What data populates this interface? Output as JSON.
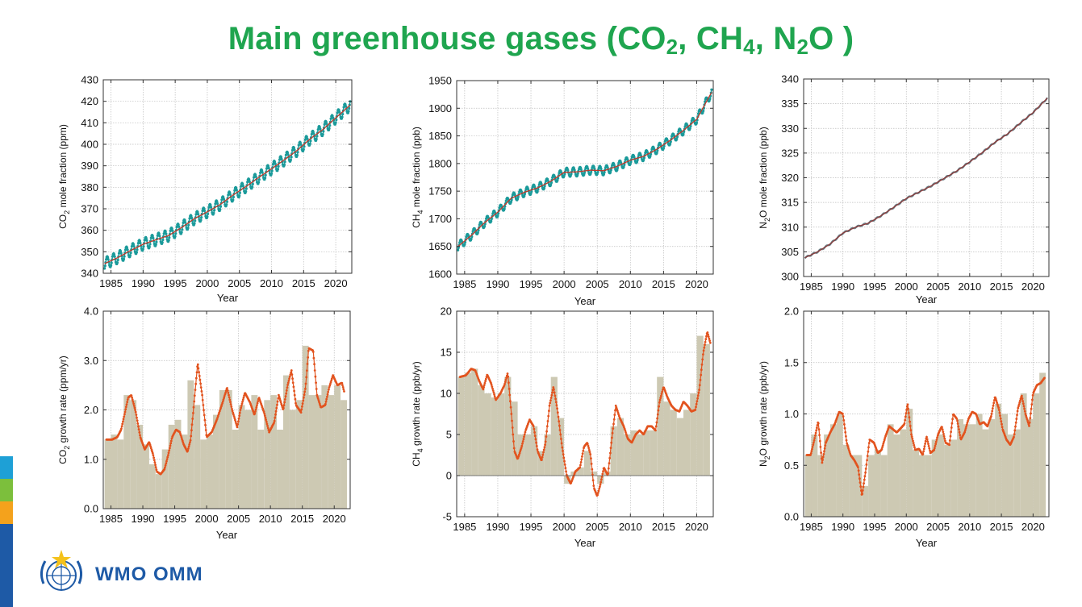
{
  "page": {
    "title_parts": [
      "Main greenhouse gases (CO",
      "2",
      ", CH",
      "4",
      ", N",
      "2",
      "O )"
    ]
  },
  "logo": {
    "text": "WMO OMM",
    "icon": "wmo-emblem-icon"
  },
  "colors": {
    "title": "#1fa54f",
    "monthly": "#1a9a9a",
    "trend": "#c0392b",
    "growth_line": "#e2531e",
    "annual_bar": "#cdc9b3",
    "n2o_line": "#8c3a3a",
    "side_stripes": [
      "#1ea0d6",
      "#7cbf3c",
      "#f4a21c",
      "#1e5aa6"
    ]
  },
  "chart_data": [
    {
      "id": "co2-concentration",
      "type": "line",
      "xlabel": "Year",
      "ylabel_parts": [
        "CO",
        "2",
        " mole fraction (ppm)"
      ],
      "xlim": [
        1983.8,
        2022.5
      ],
      "ylim": [
        340,
        430
      ],
      "xticks": [
        1985,
        1990,
        1995,
        2000,
        2005,
        2010,
        2015,
        2020
      ],
      "yticks": [
        340,
        350,
        360,
        370,
        380,
        390,
        400,
        410,
        420,
        430
      ],
      "grid": true,
      "seasonal_amplitude": 2.8,
      "series": [
        {
          "role": "monthly",
          "x": [
            1984,
            1986,
            1988,
            1990,
            1992,
            1994,
            1996,
            1998,
            2000,
            2002,
            2004,
            2006,
            2008,
            2010,
            2012,
            2014,
            2016,
            2018,
            2020,
            2022.3
          ],
          "values": [
            344.5,
            347.2,
            350.5,
            353.5,
            355.6,
            357.6,
            361.3,
            365.4,
            368.6,
            372.0,
            376.4,
            380.3,
            384.6,
            388.6,
            392.8,
            397.2,
            402.5,
            406.9,
            412.3,
            418.4
          ]
        },
        {
          "role": "trend",
          "x": [
            1984,
            1986,
            1988,
            1990,
            1992,
            1994,
            1996,
            1998,
            2000,
            2002,
            2004,
            2006,
            2008,
            2010,
            2012,
            2014,
            2016,
            2018,
            2020,
            2022.3
          ],
          "values": [
            344.5,
            347.2,
            350.5,
            353.5,
            355.6,
            357.6,
            361.3,
            365.4,
            368.6,
            372.0,
            376.4,
            380.3,
            384.6,
            388.6,
            392.8,
            397.2,
            402.5,
            406.9,
            412.3,
            418.4
          ]
        }
      ]
    },
    {
      "id": "ch4-concentration",
      "type": "line",
      "xlabel": "Year",
      "ylabel_parts": [
        "CH",
        "4",
        " mole fraction (ppb)"
      ],
      "xlim": [
        1983.8,
        2022.5
      ],
      "ylim": [
        1600,
        1950
      ],
      "xticks": [
        1985,
        1990,
        1995,
        2000,
        2005,
        2010,
        2015,
        2020
      ],
      "yticks": [
        1600,
        1650,
        1700,
        1750,
        1800,
        1850,
        1900,
        1950
      ],
      "grid": true,
      "seasonal_amplitude": 8,
      "series": [
        {
          "role": "monthly",
          "x": [
            1984,
            1986,
            1988,
            1990,
            1992,
            1994,
            1996,
            1998,
            2000,
            2002,
            2004,
            2006,
            2008,
            2010,
            2012,
            2014,
            2016,
            2018,
            2020,
            2022.3
          ],
          "values": [
            1650,
            1670,
            1693,
            1712,
            1737,
            1748,
            1756,
            1768,
            1784,
            1785,
            1788,
            1787,
            1795,
            1806,
            1813,
            1826,
            1842,
            1860,
            1880,
            1930
          ]
        },
        {
          "role": "trend",
          "x": [
            1984,
            1986,
            1988,
            1990,
            1992,
            1994,
            1996,
            1998,
            2000,
            2002,
            2004,
            2006,
            2008,
            2010,
            2012,
            2014,
            2016,
            2018,
            2020,
            2022.3
          ],
          "values": [
            1650,
            1670,
            1693,
            1712,
            1737,
            1748,
            1756,
            1768,
            1784,
            1785,
            1788,
            1787,
            1795,
            1806,
            1813,
            1826,
            1842,
            1860,
            1880,
            1930
          ]
        }
      ]
    },
    {
      "id": "n2o-concentration",
      "type": "line",
      "xlabel": "Year",
      "ylabel_parts": [
        "N",
        "2",
        "O mole fraction (ppb)"
      ],
      "xlim": [
        1983.8,
        2022.5
      ],
      "ylim": [
        300,
        340
      ],
      "xticks": [
        1985,
        1990,
        1995,
        2000,
        2005,
        2010,
        2015,
        2020
      ],
      "yticks": [
        300,
        305,
        310,
        315,
        320,
        325,
        330,
        335,
        340
      ],
      "grid": true,
      "seasonal_amplitude": 0.15,
      "series": [
        {
          "role": "monthly",
          "x": [
            1984,
            1986,
            1988,
            1990,
            1992,
            1994,
            1996,
            1998,
            2000,
            2002,
            2004,
            2006,
            2008,
            2010,
            2012,
            2014,
            2016,
            2018,
            2020,
            2022.3
          ],
          "values": [
            303.8,
            305.0,
            306.6,
            308.8,
            310.0,
            310.8,
            312.3,
            314.0,
            315.8,
            317.1,
            318.4,
            319.9,
            321.4,
            323.2,
            325.1,
            327.2,
            328.9,
            331.1,
            333.2,
            336.2
          ]
        },
        {
          "role": "trend",
          "x": [
            1984,
            1986,
            1988,
            1990,
            1992,
            1994,
            1996,
            1998,
            2000,
            2002,
            2004,
            2006,
            2008,
            2010,
            2012,
            2014,
            2016,
            2018,
            2020,
            2022.3
          ],
          "values": [
            303.8,
            305.0,
            306.6,
            308.8,
            310.0,
            310.8,
            312.3,
            314.0,
            315.8,
            317.1,
            318.4,
            319.9,
            321.4,
            323.2,
            325.1,
            327.2,
            328.9,
            331.1,
            333.2,
            336.2
          ]
        }
      ]
    },
    {
      "id": "co2-growth-rate",
      "type": "bar",
      "xlabel": "Year",
      "ylabel_parts": [
        "CO",
        "2",
        " growth rate (ppm/yr)"
      ],
      "xlim": [
        1983.8,
        2022.5
      ],
      "ylim": [
        0,
        4
      ],
      "xticks": [
        1985,
        1990,
        1995,
        2000,
        2005,
        2010,
        2015,
        2020
      ],
      "yticks": [
        0.0,
        1.0,
        2.0,
        3.0,
        4.0
      ],
      "yticklabels": [
        "0.0",
        "1.0",
        "2.0",
        "3.0",
        "4.0"
      ],
      "grid": true,
      "categories": [
        1984,
        1985,
        1986,
        1987,
        1988,
        1989,
        1990,
        1991,
        1992,
        1993,
        1994,
        1995,
        1996,
        1997,
        1998,
        1999,
        2000,
        2001,
        2002,
        2003,
        2004,
        2005,
        2006,
        2007,
        2008,
        2009,
        2010,
        2011,
        2012,
        2013,
        2014,
        2015,
        2016,
        2017,
        2018,
        2019,
        2020,
        2021
      ],
      "values": [
        1.4,
        1.5,
        1.4,
        2.3,
        2.2,
        1.7,
        1.3,
        0.9,
        0.7,
        1.2,
        1.7,
        1.8,
        1.5,
        2.6,
        2.1,
        1.4,
        1.5,
        1.9,
        2.4,
        2.4,
        1.6,
        2.1,
        2.0,
        2.3,
        1.6,
        2.2,
        2.3,
        1.6,
        2.7,
        2.0,
        2.2,
        3.3,
        2.3,
        2.3,
        2.5,
        2.3,
        2.5,
        2.2
      ],
      "line": {
        "x": [
          1984.3,
          1985.2,
          1986.0,
          1986.6,
          1987.2,
          1987.7,
          1988.2,
          1988.9,
          1989.6,
          1990.3,
          1991.0,
          1991.6,
          1992.2,
          1992.8,
          1993.4,
          1994.0,
          1994.6,
          1995.2,
          1995.8,
          1996.4,
          1997.0,
          1997.5,
          1998.0,
          1998.6,
          1999.3,
          2000.0,
          2000.8,
          2001.6,
          2002.5,
          2003.2,
          2004.0,
          2004.8,
          2005.3,
          2006.0,
          2006.8,
          2007.5,
          2008.2,
          2009.0,
          2009.8,
          2010.6,
          2011.3,
          2012.0,
          2012.7,
          2013.3,
          2014.0,
          2014.8,
          2015.5,
          2016.0,
          2016.7,
          2017.3,
          2017.9,
          2018.6,
          2019.2,
          2019.8,
          2020.5,
          2021.2,
          2021.6
        ],
        "values": [
          1.4,
          1.4,
          1.45,
          1.6,
          1.95,
          2.25,
          2.3,
          1.95,
          1.45,
          1.2,
          1.35,
          1.1,
          0.75,
          0.7,
          0.8,
          1.1,
          1.45,
          1.6,
          1.55,
          1.3,
          1.15,
          1.4,
          2.1,
          2.95,
          2.3,
          1.45,
          1.55,
          1.8,
          2.15,
          2.45,
          2.0,
          1.65,
          2.0,
          2.35,
          2.15,
          1.9,
          2.25,
          1.95,
          1.55,
          1.75,
          2.3,
          2.0,
          2.5,
          2.8,
          2.1,
          1.95,
          2.45,
          3.25,
          3.2,
          2.3,
          2.05,
          2.1,
          2.45,
          2.7,
          2.5,
          2.55,
          2.35
        ]
      }
    },
    {
      "id": "ch4-growth-rate",
      "type": "bar",
      "xlabel": "Year",
      "ylabel_parts": [
        "CH",
        "4",
        " growth rate (ppb/yr)"
      ],
      "xlim": [
        1983.8,
        2022.5
      ],
      "ylim": [
        -5,
        20
      ],
      "xticks": [
        1985,
        1990,
        1995,
        2000,
        2005,
        2010,
        2015,
        2020
      ],
      "yticks": [
        -5,
        0,
        5,
        10,
        15,
        20
      ],
      "yticklabels": [
        "-5",
        "0",
        "5",
        "10",
        "15",
        "20"
      ],
      "grid": true,
      "categories": [
        1984,
        1985,
        1986,
        1987,
        1988,
        1989,
        1990,
        1991,
        1992,
        1993,
        1994,
        1995,
        1996,
        1997,
        1998,
        1999,
        2000,
        2001,
        2002,
        2003,
        2004,
        2005,
        2006,
        2007,
        2008,
        2009,
        2010,
        2011,
        2012,
        2013,
        2014,
        2015,
        2016,
        2017,
        2018,
        2019,
        2020,
        2021
      ],
      "values": [
        12,
        12.5,
        13,
        11,
        10,
        9.5,
        10,
        12,
        9,
        5,
        5,
        6,
        3,
        5,
        12,
        7,
        -1,
        0.5,
        1,
        3,
        0.5,
        -1,
        0.5,
        6,
        7,
        5,
        5.5,
        5,
        5.5,
        5.5,
        12,
        9,
        8,
        7,
        8,
        10,
        17,
        16
      ],
      "line": {
        "x": [
          1984.3,
          1985.2,
          1986.0,
          1986.6,
          1987.2,
          1987.8,
          1988.4,
          1989.0,
          1989.7,
          1990.4,
          1991.0,
          1991.5,
          1992.0,
          1992.5,
          1993.0,
          1993.6,
          1994.2,
          1994.8,
          1995.4,
          1996.0,
          1996.6,
          1997.2,
          1997.8,
          1998.4,
          1999.0,
          1999.7,
          2000.4,
          2001.0,
          2001.7,
          2002.4,
          2003.0,
          2003.5,
          2004.0,
          2004.5,
          2005.0,
          2005.5,
          2006.0,
          2006.6,
          2007.2,
          2007.8,
          2008.4,
          2009.0,
          2009.6,
          2010.2,
          2010.8,
          2011.4,
          2012.0,
          2012.6,
          2013.2,
          2013.8,
          2014.4,
          2015.0,
          2015.6,
          2016.2,
          2016.8,
          2017.4,
          2018.0,
          2018.6,
          2019.2,
          2019.8,
          2020.4,
          2021.0,
          2021.6,
          2022.1
        ],
        "values": [
          12.0,
          12.2,
          13.0,
          12.8,
          11.5,
          10.5,
          12.3,
          11.2,
          9.2,
          10.0,
          11.0,
          12.5,
          8.0,
          3.0,
          2.0,
          3.5,
          5.5,
          6.8,
          6.0,
          3.0,
          1.8,
          4.0,
          8.5,
          10.8,
          8.0,
          3.5,
          0.0,
          -1.0,
          0.5,
          1.0,
          3.5,
          4.0,
          2.5,
          -1.5,
          -2.5,
          -1.0,
          1.0,
          0.0,
          4.5,
          8.5,
          7.0,
          6.0,
          4.5,
          4.0,
          5.0,
          5.5,
          5.0,
          6.0,
          6.0,
          5.5,
          9.0,
          10.8,
          9.5,
          8.5,
          8.0,
          7.8,
          9.0,
          8.5,
          7.8,
          8.0,
          10.5,
          15.0,
          17.5,
          16.0
        ]
      }
    },
    {
      "id": "n2o-growth-rate",
      "type": "bar",
      "xlabel": "Year",
      "ylabel_parts": [
        "N",
        "2",
        "O growth rate (ppb/yr)"
      ],
      "xlim": [
        1983.8,
        2022.5
      ],
      "ylim": [
        0,
        2
      ],
      "xticks": [
        1985,
        1990,
        1995,
        2000,
        2005,
        2010,
        2015,
        2020
      ],
      "yticks": [
        0.0,
        0.5,
        1.0,
        1.5,
        2.0
      ],
      "yticklabels": [
        "0.0",
        "0.5",
        "1.0",
        "1.5",
        "2.0"
      ],
      "grid": true,
      "categories": [
        1984,
        1985,
        1986,
        1987,
        1988,
        1989,
        1990,
        1991,
        1992,
        1993,
        1994,
        1995,
        1996,
        1997,
        1998,
        1999,
        2000,
        2001,
        2002,
        2003,
        2004,
        2005,
        2006,
        2007,
        2008,
        2009,
        2010,
        2011,
        2012,
        2013,
        2014,
        2015,
        2016,
        2017,
        2018,
        2019,
        2020,
        2021
      ],
      "values": [
        0.6,
        0.8,
        0.6,
        0.8,
        0.9,
        1.0,
        0.7,
        0.6,
        0.6,
        0.3,
        0.6,
        0.65,
        0.6,
        0.9,
        0.8,
        0.85,
        1.05,
        0.65,
        0.6,
        0.6,
        0.75,
        0.8,
        0.7,
        0.75,
        0.95,
        0.9,
        0.9,
        1.0,
        0.85,
        0.95,
        1.1,
        1.0,
        0.8,
        0.85,
        1.2,
        0.95,
        1.2,
        1.4
      ],
      "line": {
        "x": [
          1984.3,
          1984.9,
          1985.5,
          1986.1,
          1986.7,
          1987.3,
          1988.0,
          1988.7,
          1989.4,
          1990.0,
          1990.6,
          1991.2,
          1991.8,
          1992.4,
          1993.0,
          1993.6,
          1994.2,
          1994.9,
          1995.5,
          1996.1,
          1996.7,
          1997.3,
          1997.9,
          1998.5,
          1999.1,
          1999.7,
          2000.2,
          2000.8,
          2001.4,
          2002.0,
          2002.6,
          2003.2,
          2003.8,
          2004.4,
          2005.0,
          2005.6,
          2006.2,
          2006.8,
          2007.4,
          2008.0,
          2008.6,
          2009.2,
          2009.8,
          2010.4,
          2011.0,
          2011.6,
          2012.2,
          2012.8,
          2013.4,
          2014.0,
          2014.6,
          2015.2,
          2015.8,
          2016.4,
          2017.0,
          2017.6,
          2018.2,
          2018.8,
          2019.4,
          2020.0,
          2020.6,
          2021.2,
          2021.8
        ],
        "values": [
          0.6,
          0.6,
          0.75,
          0.93,
          0.52,
          0.72,
          0.82,
          0.9,
          1.02,
          1.0,
          0.72,
          0.6,
          0.55,
          0.48,
          0.2,
          0.45,
          0.75,
          0.72,
          0.62,
          0.65,
          0.78,
          0.88,
          0.85,
          0.82,
          0.86,
          0.9,
          1.1,
          0.8,
          0.65,
          0.66,
          0.6,
          0.78,
          0.62,
          0.65,
          0.8,
          0.88,
          0.72,
          0.7,
          1.0,
          0.95,
          0.75,
          0.82,
          0.95,
          1.02,
          1.0,
          0.9,
          0.92,
          0.88,
          0.98,
          1.17,
          1.05,
          0.85,
          0.75,
          0.7,
          0.78,
          1.05,
          1.18,
          1.0,
          0.88,
          1.2,
          1.28,
          1.3,
          1.35
        ]
      }
    }
  ]
}
